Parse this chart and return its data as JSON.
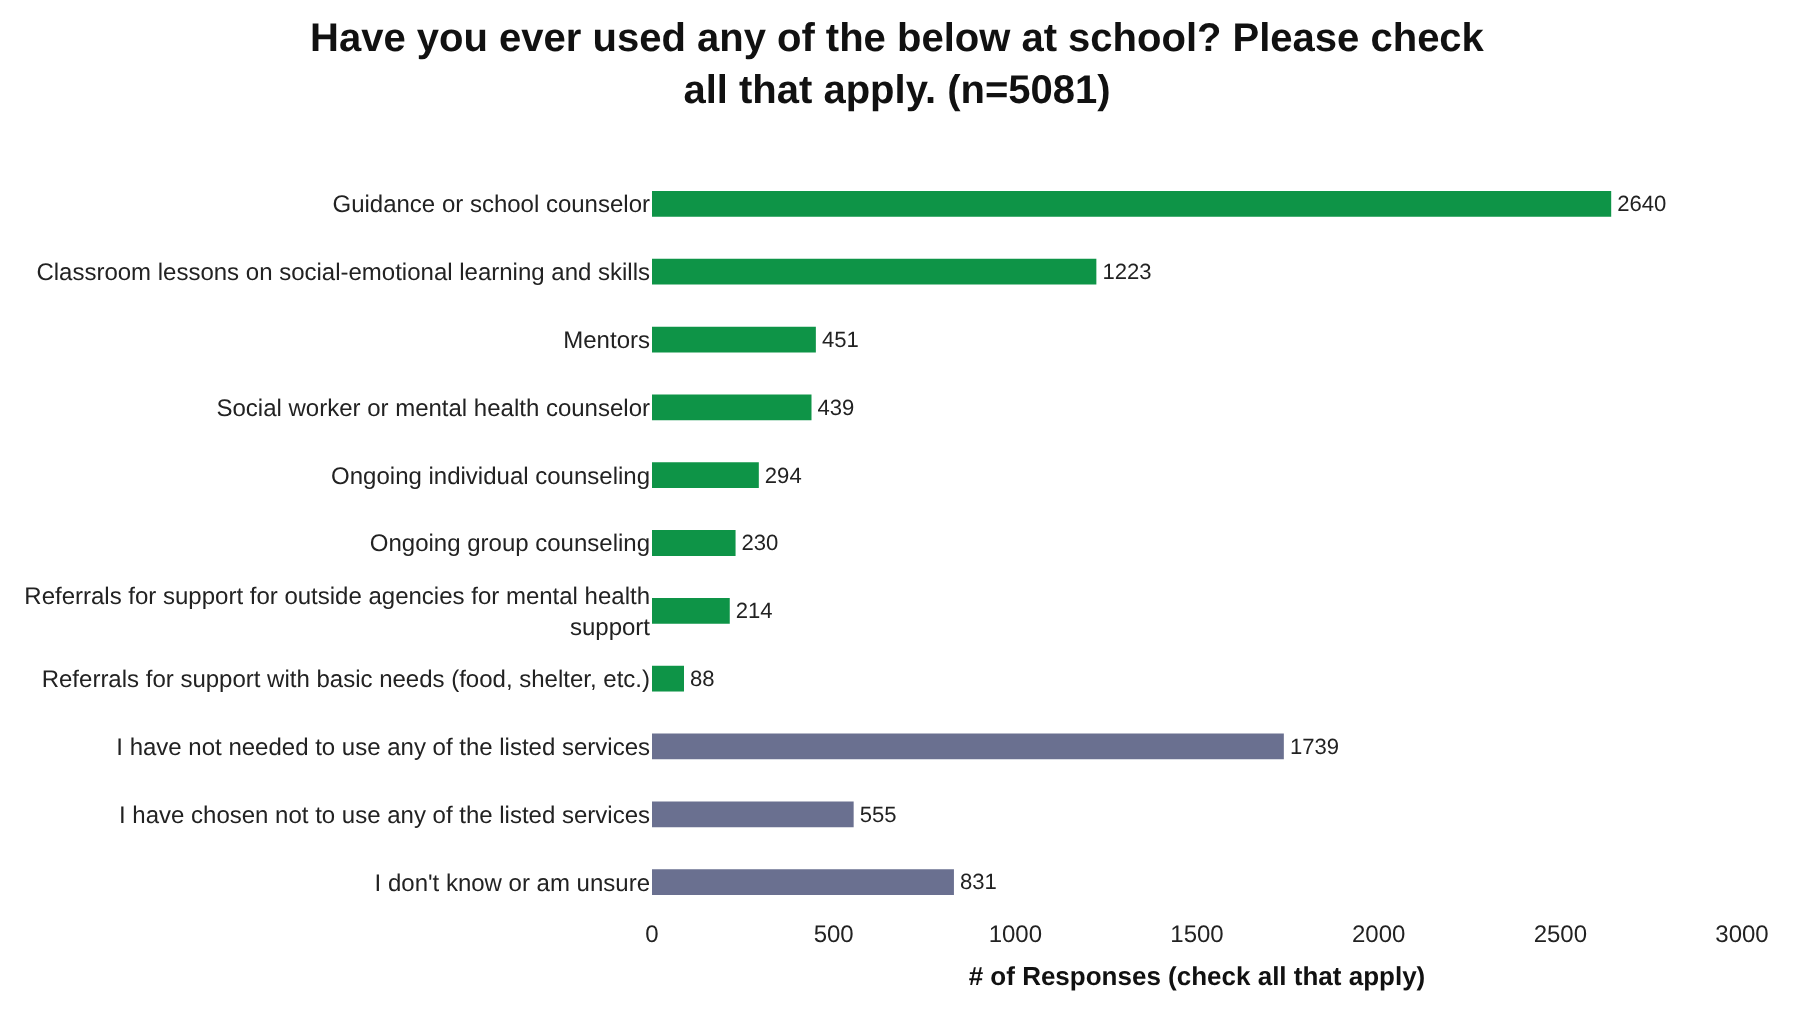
{
  "chart_data": {
    "type": "bar",
    "orientation": "horizontal",
    "title": "Have you ever used any of the below at school? Please check all that apply. (n=5081)",
    "xlabel": "# of Responses (check all that apply)",
    "categories": [
      "Guidance or school counselor",
      "Classroom lessons on social-emotional learning and skills",
      "Mentors",
      "Social worker or mental health counselor",
      "Ongoing individual counseling",
      "Ongoing group counseling",
      "Referrals for support for outside agencies for mental health support",
      "Referrals for support with basic needs (food, shelter, etc.)",
      "I have not needed to use any of the listed services",
      "I have chosen not to use any of the listed services",
      "I don't know or am unsure"
    ],
    "values": [
      2640,
      1223,
      451,
      439,
      294,
      230,
      214,
      88,
      1739,
      555,
      831
    ],
    "colors": [
      "#0e9447",
      "#0e9447",
      "#0e9447",
      "#0e9447",
      "#0e9447",
      "#0e9447",
      "#0e9447",
      "#0e9447",
      "#6a7090",
      "#6a7090",
      "#6a7090"
    ],
    "xlim": [
      0,
      3000
    ],
    "xticks": [
      0,
      500,
      1000,
      1500,
      2000,
      2500,
      3000
    ],
    "data_labels": true,
    "grid": false
  }
}
